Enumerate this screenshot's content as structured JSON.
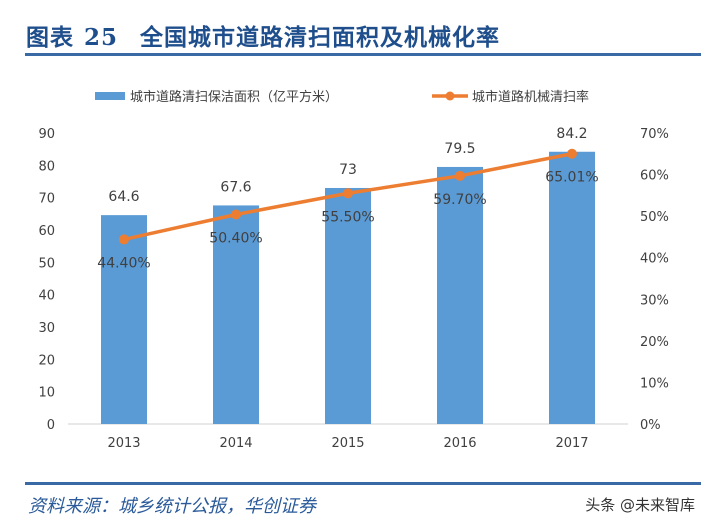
{
  "title": {
    "label": "图表",
    "number": "25",
    "text": "全国城市道路清扫面积及机械化率"
  },
  "source": "资料来源：城乡统计公报，华创证券",
  "watermark": "头条 @未来智库",
  "colors": {
    "bar": "#5b9bd5",
    "line": "#ed7d31",
    "title": "#1f4e8c"
  },
  "chart_data": {
    "type": "bar+line",
    "categories": [
      "2013",
      "2014",
      "2015",
      "2016",
      "2017"
    ],
    "series": [
      {
        "name": "城市道路清扫保洁面积（亿平方米）",
        "type": "bar",
        "axis": "left",
        "values": [
          64.6,
          67.6,
          73,
          79.5,
          84.2
        ],
        "labels": [
          "64.6",
          "67.6",
          "73",
          "79.5",
          "84.2"
        ]
      },
      {
        "name": "城市道路机械清扫率",
        "type": "line",
        "axis": "right",
        "values": [
          44.4,
          50.4,
          55.5,
          59.7,
          65.01
        ],
        "labels": [
          "44.40%",
          "50.40%",
          "55.50%",
          "59.70%",
          "65.01%"
        ]
      }
    ],
    "left_axis": {
      "ylim": [
        0,
        90
      ],
      "ticks": [
        "0",
        "10",
        "20",
        "30",
        "40",
        "50",
        "60",
        "70",
        "80",
        "90"
      ]
    },
    "right_axis": {
      "ylim": [
        0,
        70
      ],
      "ticks": [
        "0%",
        "10%",
        "20%",
        "30%",
        "40%",
        "50%",
        "60%",
        "70%"
      ]
    },
    "legend": "top",
    "grid": false
  }
}
